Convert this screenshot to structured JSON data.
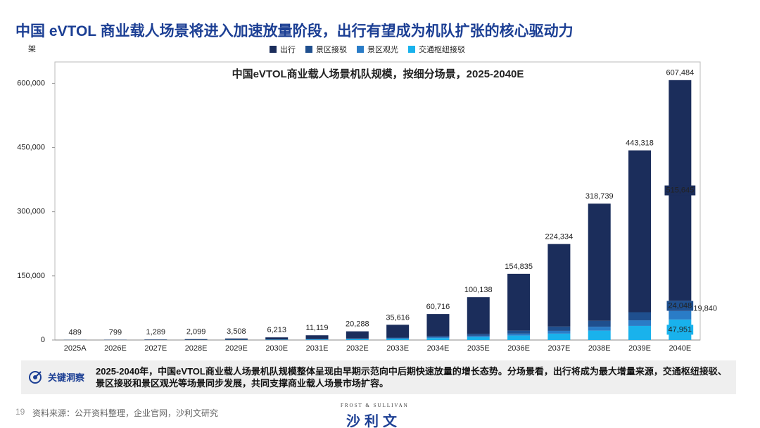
{
  "header": {
    "title": "中国 eVTOL 商业载人场景将进入加速放量阶段，出行有望成为机队扩张的核心驱动力"
  },
  "chart_data": {
    "type": "stacked_bar",
    "title": "中国eVTOL商业载人场景机队规模，按细分场景，2025-2040E",
    "y_label": "架",
    "categories": [
      "2025A",
      "2026E",
      "2027E",
      "2028E",
      "2029E",
      "2030E",
      "2031E",
      "2032E",
      "2033E",
      "2034E",
      "2035E",
      "2036E",
      "2037E",
      "2038E",
      "2039E",
      "2040E"
    ],
    "series": [
      {
        "name": "出行",
        "color": "#1b2d5b",
        "values": [
          249,
          469,
          839,
          1449,
          2608,
          4913,
          8919,
          16588,
          29816,
          51216,
          85638,
          132835,
          192834,
          273739,
          378318,
          515645
        ],
        "value_labels": [
          null,
          null,
          null,
          null,
          null,
          null,
          null,
          null,
          null,
          null,
          null,
          null,
          null,
          null,
          null,
          "515,645"
        ]
      },
      {
        "name": "景区接驳",
        "color": "#1f4f8e",
        "values": [
          80,
          100,
          150,
          200,
          300,
          400,
          700,
          1100,
          1800,
          3000,
          4500,
          7000,
          10000,
          14000,
          19000,
          24048
        ],
        "value_labels": [
          null,
          null,
          null,
          null,
          null,
          null,
          null,
          null,
          null,
          null,
          null,
          null,
          null,
          null,
          null,
          "24,048"
        ]
      },
      {
        "name": "景区观光",
        "color": "#2a7cc7",
        "values": [
          60,
          80,
          100,
          150,
          200,
          300,
          500,
          800,
          1200,
          2000,
          3000,
          4500,
          6500,
          9000,
          13000,
          19840
        ],
        "value_labels": [
          null,
          null,
          null,
          null,
          null,
          null,
          null,
          null,
          null,
          null,
          null,
          null,
          null,
          null,
          null,
          "19,840"
        ]
      },
      {
        "name": "交通枢纽接驳",
        "color": "#19b2ec",
        "values": [
          100,
          150,
          200,
          300,
          400,
          600,
          1000,
          1800,
          2800,
          4500,
          7000,
          10500,
          15000,
          22000,
          33000,
          47951
        ],
        "value_labels": [
          null,
          null,
          null,
          null,
          null,
          null,
          null,
          null,
          null,
          null,
          null,
          null,
          null,
          null,
          null,
          "47,951"
        ]
      }
    ],
    "totals": {
      "values": [
        489,
        799,
        1289,
        2099,
        3508,
        6213,
        11119,
        20288,
        35616,
        60716,
        100138,
        154835,
        224334,
        318739,
        443318,
        607484
      ],
      "value_labels": [
        "489",
        "799",
        "1,289",
        "2,099",
        "3,508",
        "6,213",
        "11,119",
        "20,288",
        "35,616",
        "60,716",
        "100,138",
        "154,835",
        "224,334",
        "318,739",
        "443,318",
        "607,484"
      ]
    },
    "ylim": [
      0,
      650000
    ],
    "yticks": [
      0,
      {
        "value": 150000,
        "label": "150,000"
      },
      {
        "value": 300000,
        "label": "300,000"
      },
      {
        "value": 450000,
        "label": "450,000"
      },
      {
        "value": 600000,
        "label": "600,000"
      }
    ],
    "grid": false,
    "legend": "top"
  },
  "insight": {
    "heading": "关键洞察",
    "text": "2025-2040年，中国eVTOL商业载人场景机队规模整体呈现由早期示范向中后期快速放量的增长态势。分场景看，出行将成为最大增量来源，交通枢纽接驳、景区接驳和景区观光等场景同步发展，共同支撑商业载人场景市场扩容。"
  },
  "footer": {
    "page_number": "19",
    "source": "资料来源：公开资料整理，企业官网，沙利文研究",
    "logo_en": "FROST & SULLIVAN",
    "logo_cn": "沙利文"
  }
}
